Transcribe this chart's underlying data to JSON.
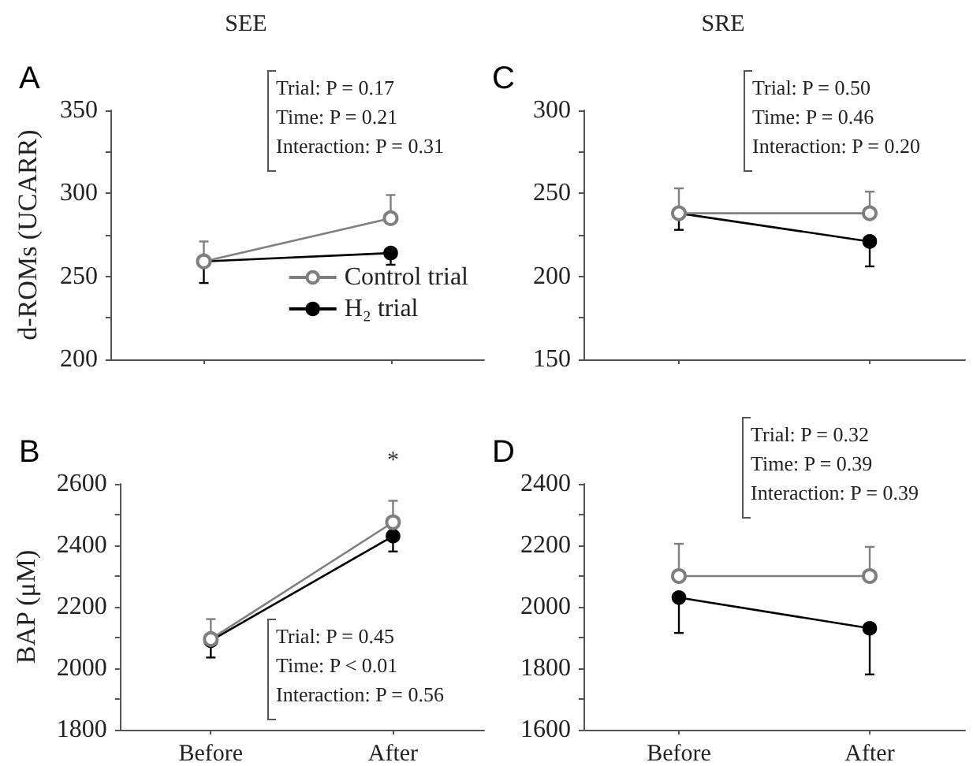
{
  "chart_data": [
    {
      "type": "line",
      "title": "A",
      "subtitle": "SEE",
      "ylabel": "d-ROMs (UCARR)",
      "categories": [
        null,
        null
      ],
      "ylim": [
        200,
        350
      ],
      "yticks": [
        200,
        {
          "value": 225,
          "label": null
        },
        250,
        {
          "value": 275,
          "label": null
        },
        300,
        {
          "value": 325,
          "label": null
        },
        350
      ],
      "legend": "bottom right",
      "marker": "circle",
      "grid": false,
      "annotations": [
        "Trial: P = 0.17",
        "Time: P = 0.21",
        "Interaction: P = 0.31"
      ],
      "series": [
        {
          "name": "Control trial",
          "color": "#7f7f7f",
          "values": [
            259,
            285
          ],
          "errors": [
            [
              259,
              271
            ],
            [
              285,
              299
            ]
          ]
        },
        {
          "name": "H₂ trial",
          "color": "#000000",
          "values": [
            259,
            264
          ],
          "errors": [
            [
              246,
              259
            ],
            [
              257,
              264
            ]
          ]
        }
      ]
    },
    {
      "type": "line",
      "title": "B",
      "ylabel": "BAP (μM)",
      "categories": [
        "Before",
        "After"
      ],
      "ylim": [
        1800,
        2600
      ],
      "yticks": [
        1800,
        {
          "value": 1900,
          "label": null
        },
        2000,
        {
          "value": 2100,
          "label": null
        },
        2200,
        {
          "value": 2300,
          "label": null
        },
        2400,
        {
          "value": 2500,
          "label": null
        },
        2600
      ],
      "marker": "circle",
      "grid": false,
      "annotations": [
        "Trial: P = 0.45",
        "Time: P < 0.01",
        "Interaction: P = 0.56",
        "*"
      ],
      "series": [
        {
          "color": "#7f7f7f",
          "values": [
            2095,
            2475
          ],
          "errors": [
            [
              2095,
              2160
            ],
            [
              2475,
              2545
            ]
          ]
        },
        {
          "color": "#000000",
          "values": [
            2090,
            2430
          ],
          "errors": [
            [
              2035,
              2090
            ],
            [
              2380,
              2430
            ]
          ]
        }
      ]
    },
    {
      "type": "line",
      "title": "C",
      "subtitle": "SRE",
      "categories": [
        null,
        null
      ],
      "ylim": [
        150,
        300
      ],
      "yticks": [
        150,
        {
          "value": 175,
          "label": null
        },
        200,
        {
          "value": 225,
          "label": null
        },
        250,
        {
          "value": 275,
          "label": null
        },
        300
      ],
      "marker": "circle",
      "grid": false,
      "annotations": [
        "Trial: P = 0.50",
        "Time: P = 0.46",
        "Interaction: P = 0.20"
      ],
      "series": [
        {
          "color": "#7f7f7f",
          "values": [
            238,
            238
          ],
          "errors": [
            [
              238,
              253
            ],
            [
              238,
              251
            ]
          ]
        },
        {
          "color": "#000000",
          "values": [
            238,
            221
          ],
          "errors": [
            [
              228,
              238
            ],
            [
              206,
              221
            ]
          ]
        }
      ]
    },
    {
      "type": "line",
      "title": "D",
      "categories": [
        "Before",
        "After"
      ],
      "ylim": [
        1600,
        2400
      ],
      "yticks": [
        1600,
        {
          "value": 1700,
          "label": null
        },
        1800,
        {
          "value": 1900,
          "label": null
        },
        2000,
        {
          "value": 2100,
          "label": null
        },
        2200,
        {
          "value": 2300,
          "label": null
        },
        2400
      ],
      "marker": "circle",
      "grid": false,
      "annotations": [
        "Trial: P = 0.32",
        "Time: P = 0.39",
        "Interaction: P = 0.39"
      ],
      "series": [
        {
          "color": "#7f7f7f",
          "values": [
            2100,
            2100
          ],
          "errors": [
            [
              2100,
              2205
            ],
            [
              2100,
              2195
            ]
          ]
        },
        {
          "color": "#000000",
          "values": [
            2030,
            1930
          ],
          "errors": [
            [
              1915,
              2030
            ],
            [
              1780,
              1930
            ]
          ]
        }
      ]
    }
  ]
}
